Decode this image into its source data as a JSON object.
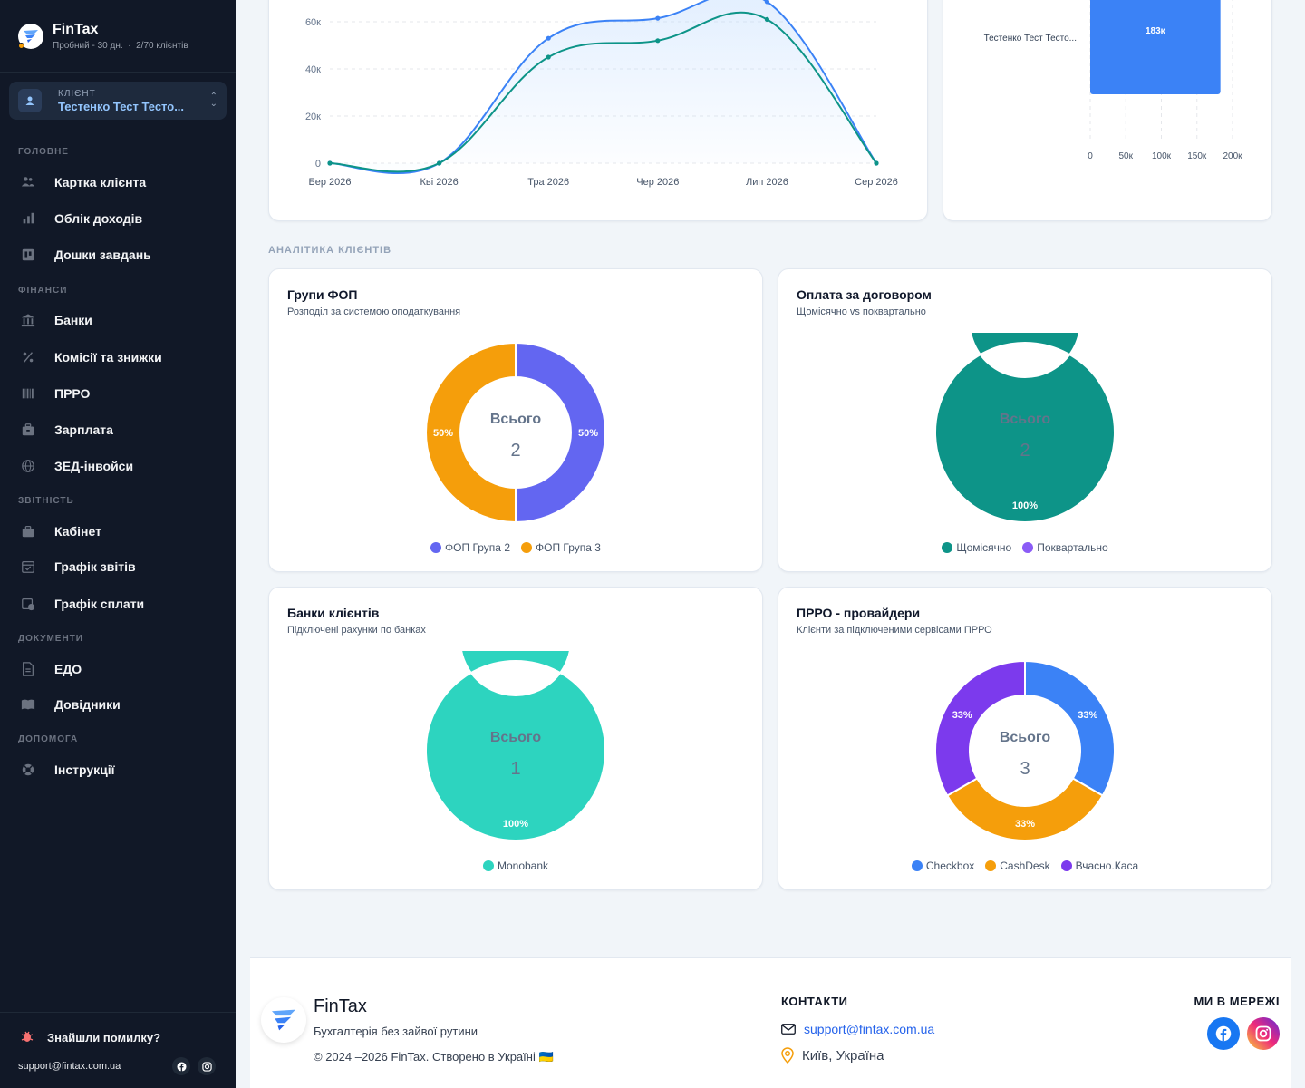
{
  "brand": {
    "name": "FinTax",
    "plan": "Пробний - 30 дн.",
    "clients": "2/70 клієнтів"
  },
  "client_selector": {
    "caption": "Клієнт",
    "name": "Тестенко Тест Тесто..."
  },
  "nav": {
    "sections": [
      {
        "title": "ГОЛОВНЕ",
        "items": [
          {
            "label": "Картка клієнта",
            "icon": "users-icon"
          },
          {
            "label": "Облік доходів",
            "icon": "bar-chart-icon"
          },
          {
            "label": "Дошки завдань",
            "icon": "kanban-icon"
          }
        ]
      },
      {
        "title": "ФІНАНСИ",
        "items": [
          {
            "label": "Банки",
            "icon": "bank-icon"
          },
          {
            "label": "Комісії та знижки",
            "icon": "percent-icon"
          },
          {
            "label": "ПРРО",
            "icon": "barcode-icon"
          },
          {
            "label": "Зарплата",
            "icon": "wallet-icon"
          },
          {
            "label": "ЗЕД-інвойси",
            "icon": "globe-icon"
          }
        ]
      },
      {
        "title": "ЗВІТНІСТЬ",
        "items": [
          {
            "label": "Кабінет",
            "icon": "briefcase-icon"
          },
          {
            "label": "Графік звітів",
            "icon": "calendar-icon"
          },
          {
            "label": "Графік сплати",
            "icon": "calendar-money-icon"
          }
        ]
      },
      {
        "title": "ДОКУМЕНТИ",
        "items": [
          {
            "label": "ЕДО",
            "icon": "document-icon"
          },
          {
            "label": "Довідники",
            "icon": "book-icon"
          }
        ]
      },
      {
        "title": "ДОПОМОГА",
        "items": [
          {
            "label": "Інструкції",
            "icon": "lifebuoy-icon"
          }
        ]
      }
    ]
  },
  "sidebar_footer": {
    "bug_label": "Знайшли помилку?",
    "support_email": "support@fintax.com.ua"
  },
  "charts": {
    "income_line": {
      "type": "line",
      "x": [
        "Бер 2026",
        "Кві 2026",
        "Тра 2026",
        "Чер 2026",
        "Лип 2026",
        "Сер 2026"
      ],
      "series": [
        {
          "values": [
            0,
            0,
            53000,
            61500,
            68500,
            0
          ],
          "color": "#3b82f6"
        },
        {
          "values": [
            0,
            0,
            45000,
            52000,
            61000,
            0
          ],
          "color": "#0d9488"
        }
      ],
      "ylim": [
        0,
        60000
      ],
      "yticks": [
        "0",
        "20к",
        "40к",
        "60к"
      ]
    },
    "clients_bar": {
      "type": "bar",
      "categories": [
        "Тестенко Тест Тесто..."
      ],
      "values": [
        183000
      ],
      "value_label": "183к",
      "xlim": [
        0,
        200000
      ],
      "xticks": [
        "0",
        "50к",
        "100к",
        "150к",
        "200к"
      ],
      "color": "#3b82f6"
    }
  },
  "analytics": {
    "section_title": "АНАЛІТИКА КЛІЄНТІВ",
    "total_label": "Всього",
    "cards": [
      {
        "title": "Групи ФОП",
        "subtitle": "Розподіл за системою оподаткування",
        "total": "2",
        "chart_data": {
          "type": "pie",
          "categories": [
            "ФОП Група 2",
            "ФОП Група 3"
          ],
          "values": [
            1,
            1
          ],
          "labels": [
            "50%",
            "50%"
          ],
          "colors": [
            "#6366f1",
            "#f59e0b"
          ]
        }
      },
      {
        "title": "Оплата за договором",
        "subtitle": "Щомісячно vs поквартально",
        "total": "2",
        "chart_data": {
          "type": "pie",
          "categories": [
            "Щомісячно",
            "Поквартально"
          ],
          "values": [
            2,
            0
          ],
          "labels": [
            "100%",
            ""
          ],
          "colors": [
            "#0d9488",
            "#8b5cf6"
          ]
        }
      },
      {
        "title": "Банки клієнтів",
        "subtitle": "Підключені рахунки по банках",
        "total": "1",
        "chart_data": {
          "type": "pie",
          "categories": [
            "Monobank"
          ],
          "values": [
            1
          ],
          "labels": [
            "100%"
          ],
          "colors": [
            "#2dd4bf"
          ]
        }
      },
      {
        "title": "ПРРО - провайдери",
        "subtitle": "Клієнти за підключеними сервісами ПРРО",
        "total": "3",
        "chart_data": {
          "type": "pie",
          "categories": [
            "Checkbox",
            "CashDesk",
            "Вчасно.Каса"
          ],
          "values": [
            1,
            1,
            1
          ],
          "labels": [
            "33%",
            "33%",
            "33%"
          ],
          "colors": [
            "#3b82f6",
            "#f59e0b",
            "#7c3aed"
          ]
        }
      }
    ]
  },
  "footer": {
    "brand": "FinTax",
    "tagline": "Бухгалтерія без зайвої рутини",
    "copyright": "© 2024 –2026 FinTax. Створено в Україні 🇺🇦",
    "contacts_title": "КОНТАКТИ",
    "email": "support@fintax.com.ua",
    "city": "Київ, Україна",
    "social_title": "МИ В МЕРЕЖІ"
  }
}
